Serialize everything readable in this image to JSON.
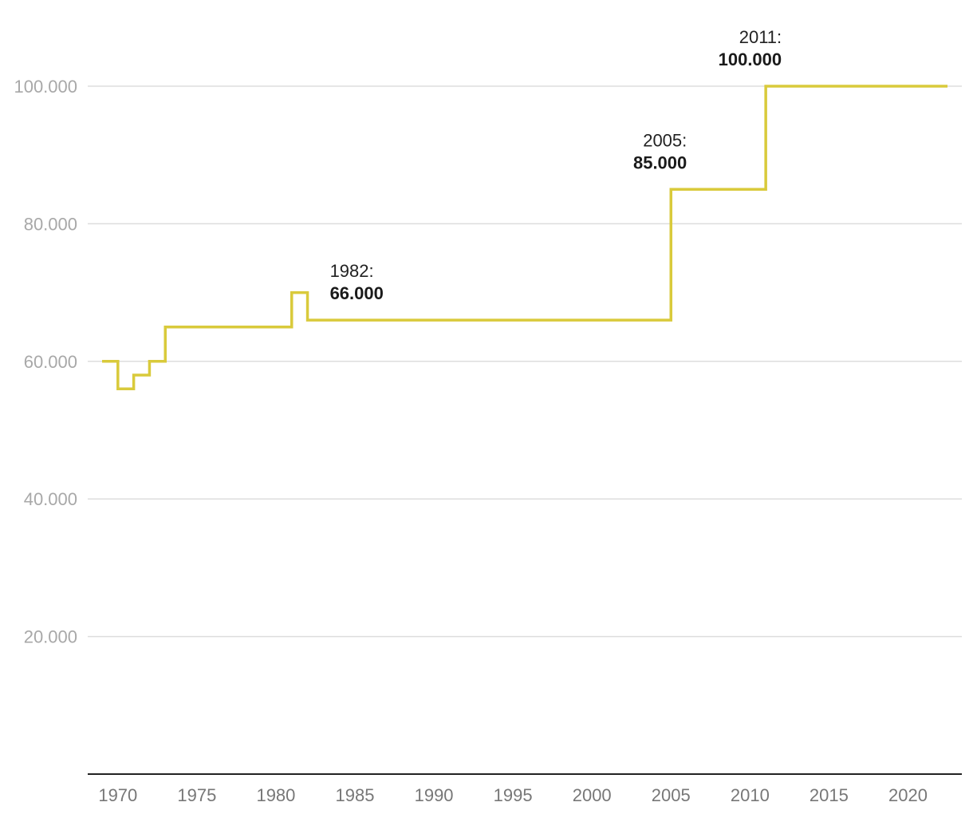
{
  "chart_data": {
    "type": "line",
    "step": true,
    "colors": {
      "line": "#d9ca3b"
    },
    "ylim": [
      0,
      100000
    ],
    "xlim": [
      1968,
      2023
    ],
    "grid": true,
    "yticks": [
      {
        "value": 20000,
        "label": "20.000"
      },
      {
        "value": 40000,
        "label": "40.000"
      },
      {
        "value": 60000,
        "label": "60.000"
      },
      {
        "value": 80000,
        "label": "80.000"
      },
      {
        "value": 100000,
        "label": "100.000"
      }
    ],
    "xticks": [
      {
        "value": 1970,
        "label": "1970"
      },
      {
        "value": 1975,
        "label": "1975"
      },
      {
        "value": 1980,
        "label": "1980"
      },
      {
        "value": 1985,
        "label": "1985"
      },
      {
        "value": 1990,
        "label": "1990"
      },
      {
        "value": 1995,
        "label": "1995"
      },
      {
        "value": 2000,
        "label": "2000"
      },
      {
        "value": 2005,
        "label": "2005"
      },
      {
        "value": 2010,
        "label": "2010"
      },
      {
        "value": 2015,
        "label": "2015"
      },
      {
        "value": 2020,
        "label": "2020"
      }
    ],
    "series": [
      {
        "points": [
          {
            "x": 1969,
            "y": 60000
          },
          {
            "x": 1970,
            "y": 56000
          },
          {
            "x": 1971,
            "y": 58000
          },
          {
            "x": 1972,
            "y": 60000
          },
          {
            "x": 1973,
            "y": 65000
          },
          {
            "x": 1981,
            "y": 70000
          },
          {
            "x": 1982,
            "y": 66000
          },
          {
            "x": 2005,
            "y": 85000
          },
          {
            "x": 2011,
            "y": 100000
          },
          {
            "x": 2022.5,
            "y": 100000
          }
        ]
      }
    ],
    "annotations": [
      {
        "year": "1982:",
        "value": "66.000",
        "x": 1982,
        "y": 66000,
        "align": "start"
      },
      {
        "year": "2005:",
        "value": "85.000",
        "x": 2005,
        "y": 85000,
        "align": "end"
      },
      {
        "year": "2011:",
        "value": "100.000",
        "x": 2011,
        "y": 100000,
        "align": "end"
      }
    ]
  }
}
